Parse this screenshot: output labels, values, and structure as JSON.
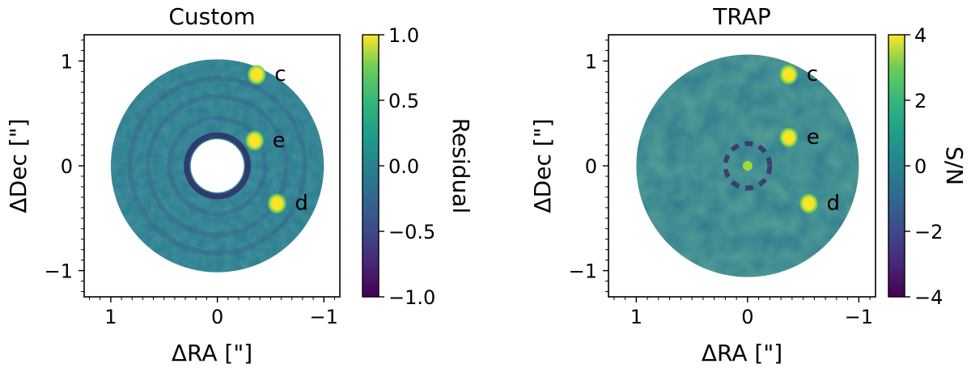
{
  "chart_data": [
    {
      "type": "heatmap",
      "title": "Custom",
      "xlabel": "ΔRA [\"]",
      "ylabel": "ΔDec [\"]",
      "xlim": [
        1.25,
        -1.15
      ],
      "ylim": [
        -1.25,
        1.25
      ],
      "x_ticks": [
        1,
        0,
        -1
      ],
      "y_ticks": [
        -1,
        0,
        1
      ],
      "x_tick_labels": [
        "1",
        "0",
        "−1"
      ],
      "y_tick_labels": [
        "−1",
        "0",
        "1"
      ],
      "colorbar": {
        "label": "Residual",
        "range": [
          -1.0,
          1.0
        ],
        "ticks": [
          1.0,
          0.5,
          0.0,
          -0.5,
          -1.0
        ],
        "tick_labels": [
          "1.0",
          "0.5",
          "0.0",
          "−0.5",
          "−1.0"
        ],
        "colormap": "viridis"
      },
      "field_outer_radius": 1.0,
      "mask_inner_radius": 0.25,
      "sources": [
        {
          "label": "c",
          "ra": -0.37,
          "dec": 0.87,
          "value": 1.0
        },
        {
          "label": "e",
          "ra": -0.35,
          "dec": 0.24,
          "value": 1.0
        },
        {
          "label": "d",
          "ra": -0.56,
          "dec": -0.36,
          "value": 1.0
        }
      ]
    },
    {
      "type": "heatmap",
      "title": "TRAP",
      "xlabel": "ΔRA [\"]",
      "ylabel": "ΔDec [\"]",
      "xlim": [
        1.25,
        -1.15
      ],
      "ylim": [
        -1.25,
        1.25
      ],
      "x_ticks": [
        1,
        0,
        -1
      ],
      "y_ticks": [
        -1,
        0,
        1
      ],
      "x_tick_labels": [
        "1",
        "0",
        "−1"
      ],
      "y_tick_labels": [
        "−1",
        "0",
        "1"
      ],
      "colorbar": {
        "label": "S/N",
        "range": [
          -4,
          4
        ],
        "ticks": [
          4,
          2,
          0,
          -2,
          -4
        ],
        "tick_labels": [
          "4",
          "2",
          "0",
          "−2",
          "−4"
        ],
        "colormap": "viridis"
      },
      "field_outer_radius": 1.0,
      "mask_inner_radius": 0,
      "sources": [
        {
          "label": "c",
          "ra": -0.37,
          "dec": 0.87,
          "value": 4
        },
        {
          "label": "e",
          "ra": -0.37,
          "dec": 0.27,
          "value": 4
        },
        {
          "label": "d",
          "ra": -0.55,
          "dec": -0.36,
          "value": 4
        }
      ]
    }
  ],
  "colors": {
    "viridis_low": "#440154",
    "viridis_mid": "#21918c",
    "viridis_high": "#fde725",
    "background_field": "#2a788e"
  }
}
